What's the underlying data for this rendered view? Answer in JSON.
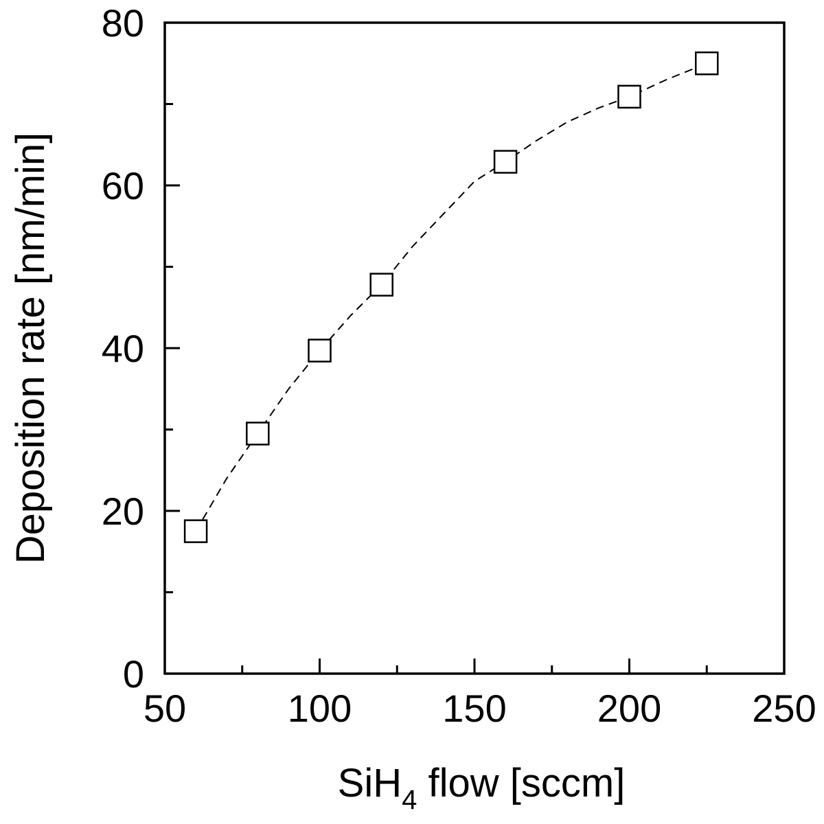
{
  "chart_data": {
    "type": "scatter",
    "title": "",
    "xlabel": {
      "main": "SiH",
      "sub": "4",
      "rest": " flow [sccm]"
    },
    "ylabel": "Deposition rate [nm/min]",
    "xlim": [
      50,
      250
    ],
    "ylim": [
      0,
      80
    ],
    "x_major_ticks": [
      50,
      100,
      150,
      200,
      250
    ],
    "x_minor_ticks": [
      75,
      125,
      175,
      225
    ],
    "y_major_ticks": [
      0,
      20,
      40,
      60,
      80
    ],
    "y_minor_ticks": [
      10,
      30,
      50,
      70
    ],
    "x_tick_labels": [
      "50",
      "100",
      "150",
      "200",
      "250"
    ],
    "y_tick_labels": [
      "0",
      "20",
      "40",
      "60",
      "80"
    ],
    "grid": false,
    "marker": "open-square",
    "points": [
      {
        "x": 60,
        "y": 17.5
      },
      {
        "x": 80,
        "y": 29.5
      },
      {
        "x": 100,
        "y": 39.7
      },
      {
        "x": 120,
        "y": 47.8
      },
      {
        "x": 160,
        "y": 62.9
      },
      {
        "x": 200,
        "y": 70.9
      },
      {
        "x": 225,
        "y": 75.0
      }
    ],
    "trend_line": [
      {
        "x": 60,
        "y": 17.5
      },
      {
        "x": 70,
        "y": 24.0
      },
      {
        "x": 80,
        "y": 29.5
      },
      {
        "x": 90,
        "y": 35.0
      },
      {
        "x": 100,
        "y": 39.7
      },
      {
        "x": 110,
        "y": 44.0
      },
      {
        "x": 120,
        "y": 47.8
      },
      {
        "x": 130,
        "y": 52.5
      },
      {
        "x": 140,
        "y": 56.5
      },
      {
        "x": 150,
        "y": 60.5
      },
      {
        "x": 160,
        "y": 62.9
      },
      {
        "x": 170,
        "y": 65.5
      },
      {
        "x": 180,
        "y": 67.8
      },
      {
        "x": 190,
        "y": 69.5
      },
      {
        "x": 200,
        "y": 70.9
      },
      {
        "x": 212,
        "y": 73.0
      },
      {
        "x": 225,
        "y": 75.0
      }
    ]
  }
}
